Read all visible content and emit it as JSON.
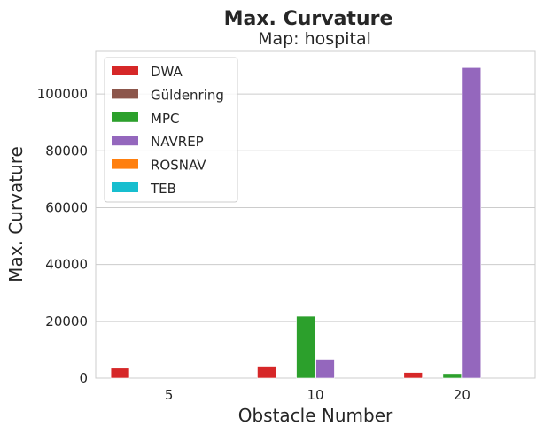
{
  "chart_data": {
    "type": "bar",
    "title": "Max. Curvature",
    "subtitle": "Map: hospital",
    "xlabel": "Obstacle Number",
    "ylabel": "Max. Curvature",
    "categories": [
      "5",
      "10",
      "20"
    ],
    "yticks": [
      "0",
      "20000",
      "40000",
      "60000",
      "80000",
      "100000"
    ],
    "ylim": [
      0,
      115000
    ],
    "grid": "horizontal",
    "legend_position": "top-left",
    "series": [
      {
        "name": "DWA",
        "color": "#d62728",
        "values": [
          3500,
          4200,
          2000
        ]
      },
      {
        "name": "Güldenring",
        "color": "#8c564b",
        "values": [
          0,
          0,
          0
        ]
      },
      {
        "name": "MPC",
        "color": "#2ca02c",
        "values": [
          0,
          21800,
          1600
        ]
      },
      {
        "name": "NAVREP",
        "color": "#9467bd",
        "values": [
          0,
          6700,
          109300
        ]
      },
      {
        "name": "ROSNAV",
        "color": "#ff7f0e",
        "values": [
          0,
          0,
          0
        ]
      },
      {
        "name": "TEB",
        "color": "#17becf",
        "values": [
          0,
          0,
          0
        ]
      }
    ]
  }
}
